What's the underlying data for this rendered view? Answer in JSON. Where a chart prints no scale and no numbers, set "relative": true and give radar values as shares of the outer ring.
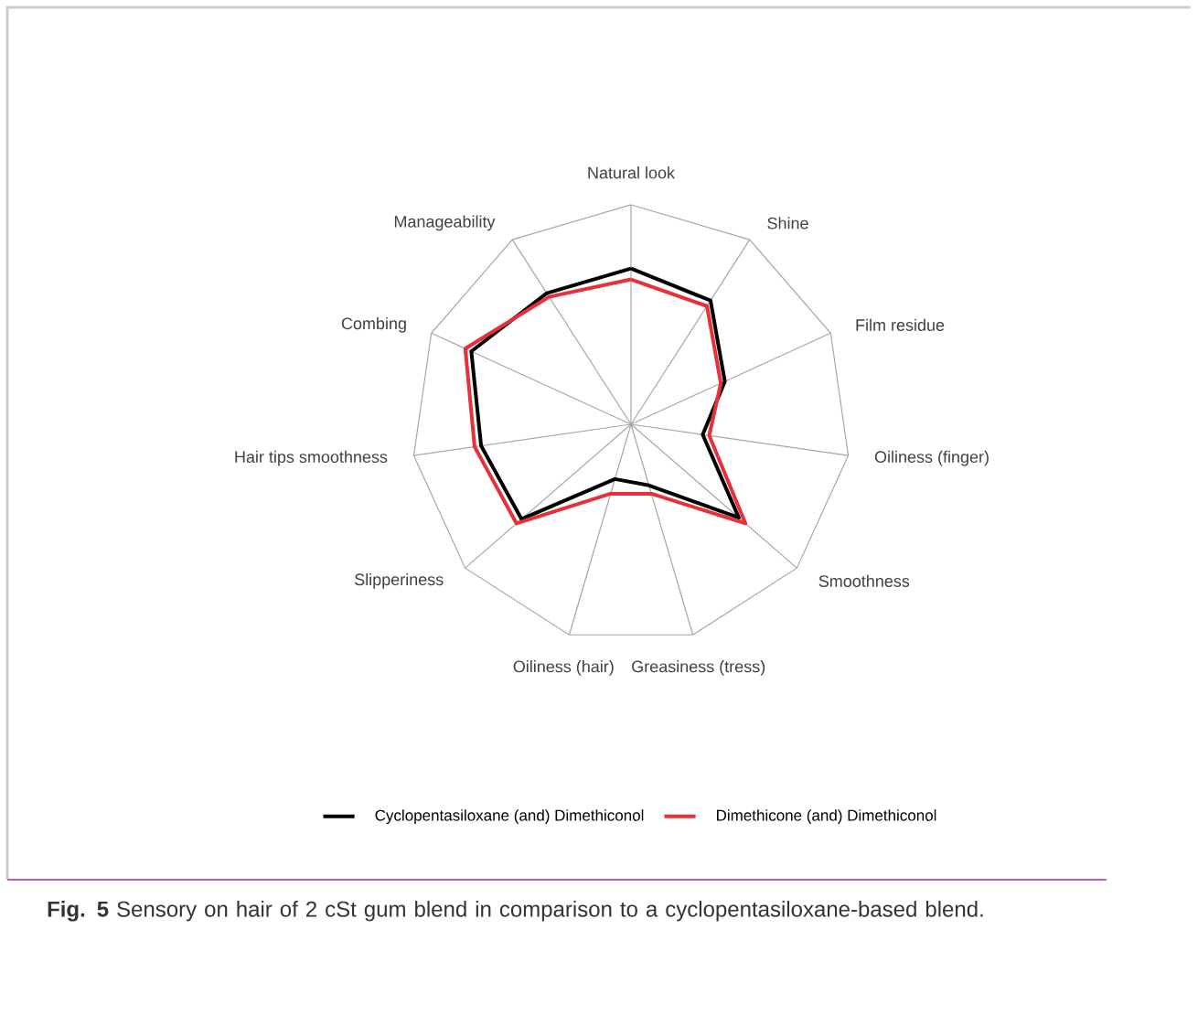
{
  "chart_data": {
    "type": "radar",
    "relative": true,
    "grid": true,
    "legend": "bottom",
    "categories": [
      "Natural look",
      "Shine",
      "Film residue",
      "Oiliness (finger)",
      "Smoothness",
      "Greasiness (tress)",
      "Oiliness (hair)",
      "Slipperiness",
      "Hair tips smoothness",
      "Combing",
      "Manageability"
    ],
    "series": [
      {
        "name": "Cyclopentasiloxane (and) Dimethiconol",
        "color": "#000000",
        "values": [
          0.71,
          0.67,
          0.47,
          0.33,
          0.65,
          0.29,
          0.26,
          0.66,
          0.69,
          0.8,
          0.71
        ]
      },
      {
        "name": "Dimethicone (and) Dimethiconol",
        "color": "#e8303a",
        "values": [
          0.66,
          0.64,
          0.45,
          0.36,
          0.69,
          0.33,
          0.33,
          0.69,
          0.72,
          0.83,
          0.69
        ]
      }
    ],
    "annotations": [
      "**Fig. 5** Sensory on hair of 2 cSt gum blend in comparison to a cyclopentasiloxane-based blend."
    ]
  }
}
